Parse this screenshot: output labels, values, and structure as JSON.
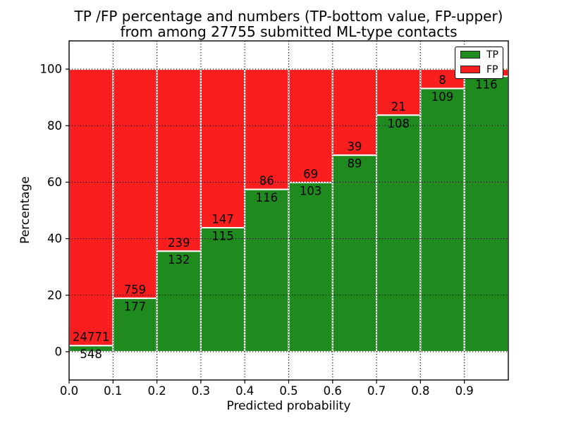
{
  "chart_data": {
    "type": "bar",
    "stacked": true,
    "title_line1": "TP /FP percentage and numbers (TP-bottom value, FP-upper)",
    "title_line2": "from among 27755 submitted ML-type contacts",
    "xlabel": "Predicted probability",
    "ylabel": "Percentage",
    "xlim": [
      0.0,
      1.0
    ],
    "ylim": [
      -10,
      110
    ],
    "grid": true,
    "bar_width": 0.1,
    "xticks": [
      0.0,
      0.1,
      0.2,
      0.3,
      0.4,
      0.5,
      0.6,
      0.7,
      0.8,
      0.9
    ],
    "xtick_labels": [
      "0.0",
      "0.1",
      "0.2",
      "0.3",
      "0.4",
      "0.5",
      "0.6",
      "0.7",
      "0.8",
      "0.9"
    ],
    "yticks": [
      0,
      20,
      40,
      60,
      80,
      100
    ],
    "ytick_labels": [
      "0",
      "20",
      "40",
      "60",
      "80",
      "100"
    ],
    "series": [
      {
        "name": "TP",
        "color": "#1f8b1f",
        "labels": [
          "548",
          "177",
          "132",
          "115",
          "116",
          "103",
          "89",
          "108",
          "109",
          "116"
        ]
      },
      {
        "name": "FP",
        "color": "#fb1e1e",
        "labels": [
          "24771",
          "759",
          "239",
          "147",
          "86",
          "69",
          "39",
          "21",
          "8",
          ""
        ]
      }
    ],
    "tp_pct": [
      2.16,
      18.91,
      35.58,
      43.89,
      57.43,
      59.88,
      69.53,
      83.72,
      93.16,
      97.48
    ],
    "legend": {
      "position": "upper right",
      "entries": [
        {
          "label": "TP",
          "color": "#1f8b1f"
        },
        {
          "label": "FP",
          "color": "#fb1e1e"
        }
      ]
    },
    "style": {
      "bar_edge_color": "#ffffff",
      "grid_color": "#000000",
      "frame_color": "#000000",
      "text_color": "#000000",
      "background": "#ffffff"
    }
  }
}
